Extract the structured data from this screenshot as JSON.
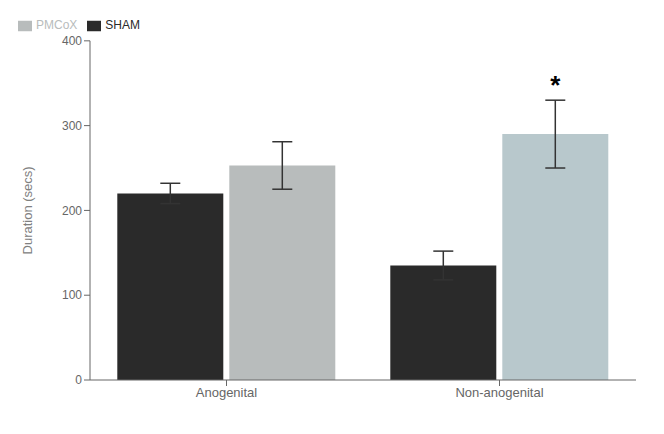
{
  "chart_data": {
    "type": "bar",
    "categories": [
      "Anogenital",
      "Non-anogenital"
    ],
    "series": [
      {
        "name": "SHAM",
        "color": "#2a2a2a",
        "values": [
          220,
          135
        ],
        "errors": [
          12,
          17
        ]
      },
      {
        "name": "PMCoX",
        "color": "#b8bcbc",
        "colors": [
          "#b8bcbc",
          "#b8c8cc"
        ],
        "values": [
          253,
          290
        ],
        "errors": [
          28,
          40
        ]
      }
    ],
    "y_label": "Duration (secs)",
    "ylim": [
      0,
      400
    ],
    "yticks": [
      0,
      100,
      200,
      300,
      400
    ],
    "legend": "upper left",
    "grid": false,
    "annotations": [
      {
        "text": "*",
        "category": "Non-anogenital",
        "series": "PMCoX"
      }
    ]
  }
}
